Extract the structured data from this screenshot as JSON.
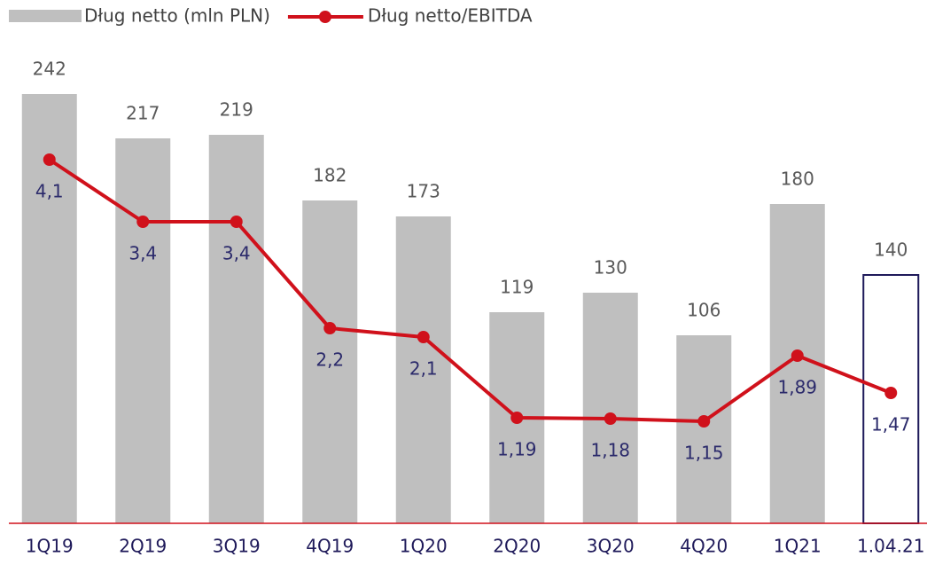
{
  "chart_data": {
    "type": "bar+line",
    "categories": [
      "1Q19",
      "2Q19",
      "3Q19",
      "4Q19",
      "1Q20",
      "2Q20",
      "3Q20",
      "4Q20",
      "1Q21",
      "1.04.21"
    ],
    "series": [
      {
        "name": "Dług netto (mln PLN)",
        "type": "bar",
        "color": "#bfbfbf",
        "colors": [
          "#bfbfbf",
          "#bfbfbf",
          "#bfbfbf",
          "#bfbfbf",
          "#bfbfbf",
          "#bfbfbf",
          "#bfbfbf",
          "#bfbfbf",
          "#bfbfbf",
          "#ffffff"
        ],
        "edgecolors": [
          null,
          null,
          null,
          null,
          null,
          null,
          null,
          null,
          null,
          "#1f1a5a"
        ],
        "values": [
          242,
          217,
          219,
          182,
          173,
          119,
          130,
          106,
          180,
          140
        ]
      },
      {
        "name": "Dług netto/EBITDA",
        "type": "line",
        "axis": "y2",
        "color": "#d0111b",
        "values": [
          4.1,
          3.4,
          3.4,
          2.2,
          2.1,
          1.19,
          1.18,
          1.15,
          1.89,
          1.47
        ],
        "value_labels": [
          "4,1",
          "3,4",
          "3,4",
          "2,2",
          "2,1",
          "1,19",
          "1,18",
          "1,15",
          "1,89",
          "1,47"
        ]
      }
    ],
    "ylim": [
      0,
      250
    ],
    "y2lim": [
      0,
      5
    ],
    "legend": "top-left"
  }
}
